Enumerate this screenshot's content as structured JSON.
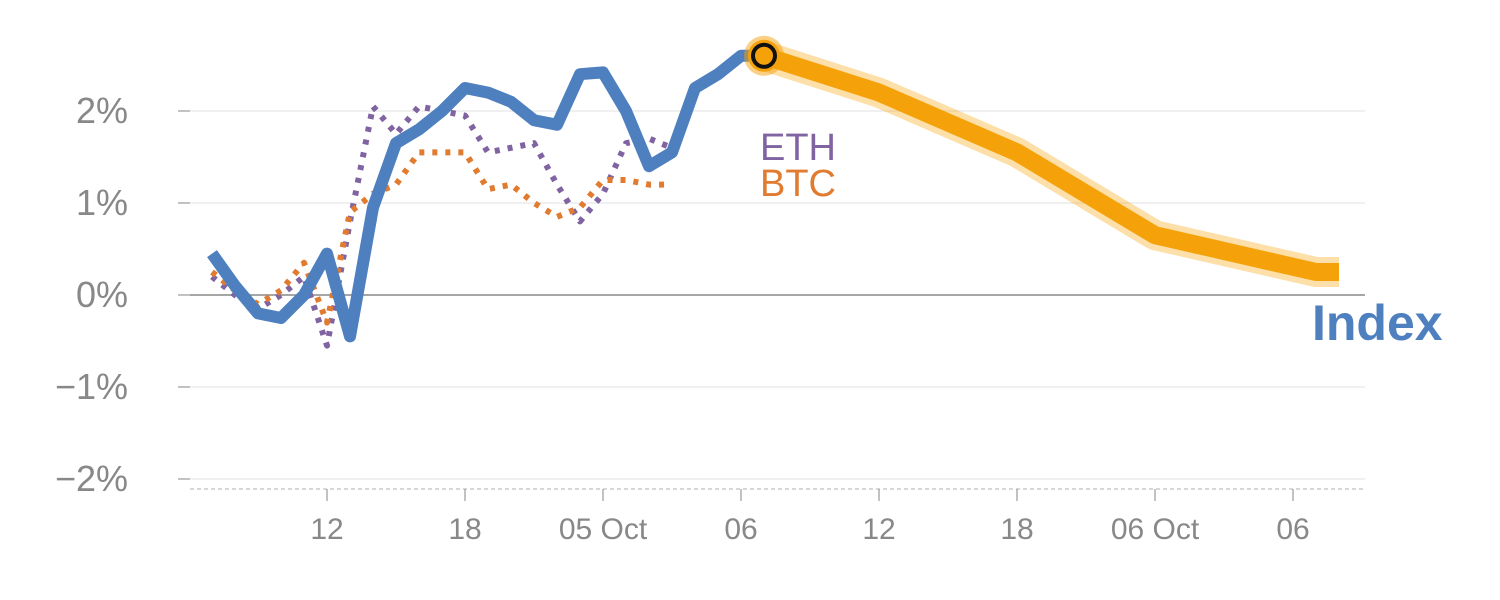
{
  "chart_data": {
    "type": "line",
    "ylim": [
      -2,
      2.6
    ],
    "yticks": [
      {
        "value": 2,
        "label": "2%"
      },
      {
        "value": 1,
        "label": "1%"
      },
      {
        "value": 0,
        "label": "0%"
      },
      {
        "value": -1,
        "label": "−1%"
      },
      {
        "value": -2,
        "label": "−2%"
      }
    ],
    "x_ticks": [
      {
        "x": 6,
        "label": "12"
      },
      {
        "x": 12,
        "label": "18"
      },
      {
        "x": 18,
        "label": "05 Oct"
      },
      {
        "x": 24,
        "label": "06"
      },
      {
        "x": 30,
        "label": "12"
      },
      {
        "x": 36,
        "label": "18"
      },
      {
        "x": 42,
        "label": "06 Oct"
      },
      {
        "x": 48,
        "label": "06"
      }
    ],
    "series": [
      {
        "name": "ETH",
        "color": "#8064a2",
        "style": "dotted",
        "x": [
          1,
          2,
          3,
          4,
          5,
          6,
          7,
          8,
          9,
          10,
          11,
          12,
          13,
          14,
          15,
          16,
          17,
          18,
          19,
          20,
          21,
          22,
          23,
          24,
          25
        ],
        "values": [
          0.2,
          0.0,
          -0.15,
          0.0,
          0.2,
          -0.55,
          0.8,
          2.05,
          1.75,
          2.05,
          2.0,
          1.95,
          1.55,
          1.6,
          1.65,
          1.2,
          0.8,
          1.1,
          1.65,
          1.7,
          1.6,
          null,
          null,
          null,
          null
        ]
      },
      {
        "name": "BTC",
        "color": "#e07b30",
        "style": "dotted",
        "x": [
          1,
          2,
          3,
          4,
          5,
          6,
          7,
          8,
          9,
          10,
          11,
          12,
          13,
          14,
          15,
          16,
          17,
          18,
          19,
          20,
          21
        ],
        "values": [
          0.25,
          0.05,
          -0.1,
          0.05,
          0.35,
          -0.3,
          0.9,
          1.1,
          1.2,
          1.55,
          1.55,
          1.55,
          1.15,
          1.2,
          1.0,
          0.85,
          0.95,
          1.25,
          1.25,
          1.2,
          1.2
        ]
      },
      {
        "name": "Index",
        "color": "#4e7fbf",
        "style": "solid",
        "x": [
          1,
          2,
          3,
          4,
          5,
          6,
          7,
          8,
          9,
          10,
          11,
          12,
          13,
          14,
          15,
          16,
          17,
          18,
          19,
          20,
          21,
          22,
          23,
          24,
          25
        ],
        "values": [
          0.45,
          0.1,
          -0.2,
          -0.25,
          0.0,
          0.45,
          -0.45,
          0.95,
          1.65,
          1.8,
          2.0,
          2.25,
          2.2,
          2.1,
          1.9,
          1.85,
          2.4,
          2.42,
          2.0,
          1.4,
          1.55,
          2.25,
          2.4,
          2.6,
          2.6
        ]
      },
      {
        "name": "Index (projection)",
        "color": "#f5a20a",
        "style": "thick",
        "x": [
          25,
          30,
          36,
          42,
          49,
          50
        ],
        "values": [
          2.6,
          2.2,
          1.55,
          0.65,
          0.25,
          0.25
        ]
      }
    ],
    "marker": {
      "x": 25,
      "value": 2.6
    }
  },
  "labels": {
    "eth": "ETH",
    "btc": "BTC",
    "index": "Index"
  },
  "colors": {
    "eth": "#8064a2",
    "btc": "#e07b30",
    "index": "#4e7fbf",
    "projection": "#f5a20a",
    "axis_text": "#888888"
  }
}
